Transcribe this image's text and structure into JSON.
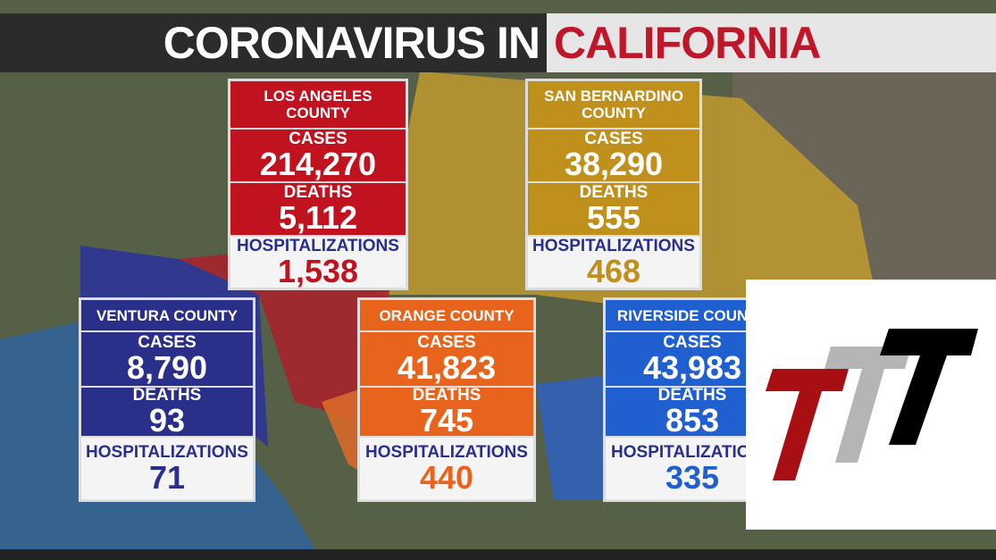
{
  "header": {
    "title_left": "CORONAVIRUS IN",
    "title_right": "CALIFORNIA"
  },
  "cards": [
    {
      "name": "LOS ANGELES COUNTY",
      "cases_label": "CASES",
      "cases": "214,270",
      "deaths_label": "DEATHS",
      "deaths": "5,112",
      "hosp_label": "HOSPITALIZATIONS",
      "hosp": "1,538"
    },
    {
      "name": "SAN BERNARDINO COUNTY",
      "cases_label": "CASES",
      "cases": "38,290",
      "deaths_label": "DEATHS",
      "deaths": "555",
      "hosp_label": "HOSPITALIZATIONS",
      "hosp": "468"
    },
    {
      "name": "VENTURA COUNTY",
      "cases_label": "CASES",
      "cases": "8,790",
      "deaths_label": "DEATHS",
      "deaths": "93",
      "hosp_label": "HOSPITALIZATIONS",
      "hosp": "71"
    },
    {
      "name": "ORANGE COUNTY",
      "cases_label": "CASES",
      "cases": "41,823",
      "deaths_label": "DEATHS",
      "deaths": "745",
      "hosp_label": "HOSPITALIZATIONS",
      "hosp": "440"
    },
    {
      "name": "RIVERSIDE COUNTY",
      "cases_label": "CASES",
      "cases": "43,983",
      "deaths_label": "DEATHS",
      "deaths": "853",
      "hosp_label": "HOSPITALIZATIONS",
      "hosp": "335"
    }
  ]
}
